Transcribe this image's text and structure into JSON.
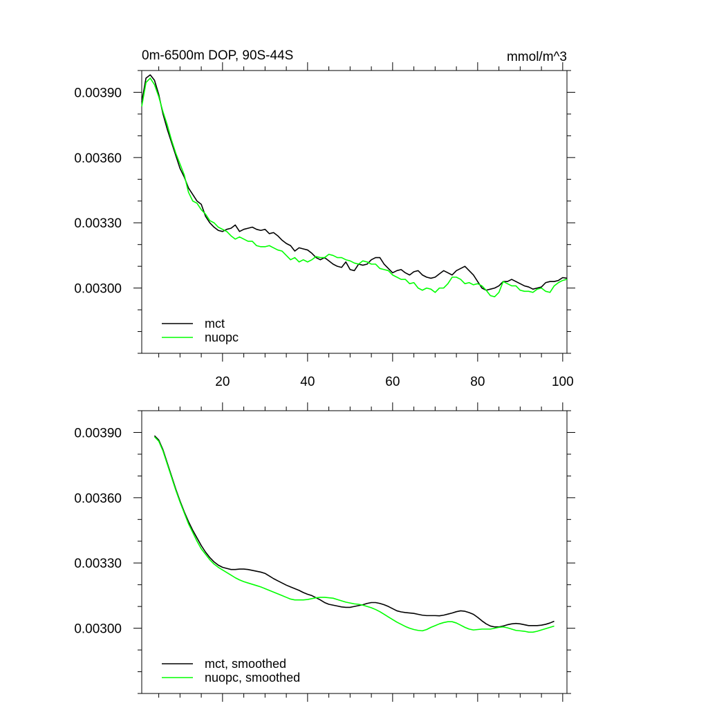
{
  "chart_data": [
    {
      "type": "line",
      "title": "0m-6500m DOP, 90S-44S",
      "units": "mmol/m^3",
      "xlim": [
        1,
        101
      ],
      "ylim": [
        0.0027,
        0.004
      ],
      "xticks": [
        20,
        40,
        60,
        80,
        100
      ],
      "xtick_labels": [
        "20",
        "40",
        "60",
        "80",
        "100"
      ],
      "yticks": [
        0.003,
        0.0033,
        0.0036,
        0.0039
      ],
      "ytick_labels": [
        "0.00300",
        "0.00330",
        "0.00360",
        "0.00390"
      ],
      "grid": false,
      "legend_position": "bottom-left",
      "series": [
        {
          "name": "mct",
          "color": "#000000",
          "x": [
            1,
            2,
            3,
            4,
            5,
            6,
            7,
            8,
            9,
            10,
            11,
            12,
            13,
            14,
            15,
            16,
            17,
            18,
            19,
            20,
            21,
            22,
            23,
            24,
            25,
            26,
            27,
            28,
            29,
            30,
            31,
            32,
            33,
            34,
            35,
            36,
            37,
            38,
            39,
            40,
            41,
            42,
            43,
            44,
            45,
            46,
            47,
            48,
            49,
            50,
            51,
            52,
            53,
            54,
            55,
            56,
            57,
            58,
            59,
            60,
            61,
            62,
            63,
            64,
            65,
            66,
            67,
            68,
            69,
            70,
            71,
            72,
            73,
            74,
            75,
            76,
            77,
            78,
            79,
            80,
            81,
            82,
            83,
            84,
            85,
            86,
            87,
            88,
            89,
            90,
            91,
            92,
            93,
            94,
            95,
            96,
            97,
            98,
            99,
            100,
            101
          ],
          "values": [
            0.003855,
            0.003965,
            0.00398,
            0.003955,
            0.00389,
            0.0038,
            0.00373,
            0.00367,
            0.00361,
            0.00355,
            0.00351,
            0.00346,
            0.00343,
            0.0034,
            0.003385,
            0.00333,
            0.0033,
            0.00328,
            0.003265,
            0.00326,
            0.00327,
            0.003275,
            0.00329,
            0.00326,
            0.00327,
            0.003275,
            0.00328,
            0.00327,
            0.003265,
            0.00327,
            0.00325,
            0.003255,
            0.00324,
            0.00322,
            0.003205,
            0.003195,
            0.00317,
            0.003185,
            0.00318,
            0.003175,
            0.00316,
            0.00314,
            0.00313,
            0.00314,
            0.003125,
            0.00311,
            0.0031,
            0.003095,
            0.00312,
            0.003085,
            0.00308,
            0.00311,
            0.003105,
            0.00311,
            0.00313,
            0.00314,
            0.00314,
            0.00311,
            0.00309,
            0.00307,
            0.00308,
            0.003085,
            0.00307,
            0.00306,
            0.003075,
            0.00308,
            0.00306,
            0.00305,
            0.003045,
            0.00305,
            0.003065,
            0.00308,
            0.00307,
            0.00306,
            0.00308,
            0.00309,
            0.0031,
            0.00308,
            0.00306,
            0.00303,
            0.003,
            0.00299,
            0.002995,
            0.003,
            0.00301,
            0.00303,
            0.00303,
            0.00304,
            0.00303,
            0.00302,
            0.00301,
            0.003005,
            0.002995,
            0.003,
            0.003005,
            0.003025,
            0.00303,
            0.00303,
            0.003035,
            0.003048,
            0.003045
          ]
        },
        {
          "name": "nuopc",
          "color": "#00ff00",
          "x": [
            1,
            2,
            3,
            4,
            5,
            6,
            7,
            8,
            9,
            10,
            11,
            12,
            13,
            14,
            15,
            16,
            17,
            18,
            19,
            20,
            21,
            22,
            23,
            24,
            25,
            26,
            27,
            28,
            29,
            30,
            31,
            32,
            33,
            34,
            35,
            36,
            37,
            38,
            39,
            40,
            41,
            42,
            43,
            44,
            45,
            46,
            47,
            48,
            49,
            50,
            51,
            52,
            53,
            54,
            55,
            56,
            57,
            58,
            59,
            60,
            61,
            62,
            63,
            64,
            65,
            66,
            67,
            68,
            69,
            70,
            71,
            72,
            73,
            74,
            75,
            76,
            77,
            78,
            79,
            80,
            81,
            82,
            83,
            84,
            85,
            86,
            87,
            88,
            89,
            90,
            91,
            92,
            93,
            94,
            95,
            96,
            97,
            98,
            99,
            100,
            101
          ],
          "values": [
            0.003835,
            0.003945,
            0.003965,
            0.003935,
            0.00388,
            0.00381,
            0.00375,
            0.00368,
            0.00362,
            0.00357,
            0.00352,
            0.00344,
            0.0034,
            0.00339,
            0.00336,
            0.00334,
            0.00331,
            0.0033,
            0.00328,
            0.00327,
            0.00326,
            0.00324,
            0.003225,
            0.003235,
            0.003225,
            0.003215,
            0.003215,
            0.003195,
            0.00319,
            0.00319,
            0.003195,
            0.003185,
            0.003175,
            0.00317,
            0.00315,
            0.00313,
            0.00314,
            0.00312,
            0.00313,
            0.00312,
            0.00313,
            0.003145,
            0.00314,
            0.00314,
            0.003155,
            0.00315,
            0.00314,
            0.00314,
            0.00313,
            0.003125,
            0.003115,
            0.00311,
            0.003125,
            0.00312,
            0.00311,
            0.00311,
            0.00309,
            0.003085,
            0.00308,
            0.00306,
            0.00305,
            0.00304,
            0.00304,
            0.00302,
            0.003025,
            0.003,
            0.00299,
            0.003,
            0.002995,
            0.00298,
            0.003,
            0.003,
            0.00302,
            0.00305,
            0.00305,
            0.00304,
            0.00302,
            0.003025,
            0.003015,
            0.00302,
            0.00301,
            0.00299,
            0.002965,
            0.00296,
            0.00298,
            0.00303,
            0.00302,
            0.00301,
            0.00301,
            0.00299,
            0.002985,
            0.002985,
            0.00298,
            0.002995,
            0.003,
            0.002985,
            0.00298,
            0.00301,
            0.003025,
            0.003035,
            0.00304
          ]
        }
      ]
    },
    {
      "type": "line",
      "title": "",
      "xlim": [
        1,
        101
      ],
      "ylim": [
        0.0027,
        0.004
      ],
      "xticks": [
        20,
        40,
        60,
        80,
        100
      ],
      "xtick_labels": [],
      "yticks": [
        0.003,
        0.0033,
        0.0036,
        0.0039
      ],
      "ytick_labels": [
        "0.00300",
        "0.00330",
        "0.00360",
        "0.00390"
      ],
      "grid": false,
      "legend_position": "bottom-left",
      "series": [
        {
          "name": "mct, smoothed",
          "color": "#000000",
          "x": [
            4,
            5,
            6,
            7,
            8,
            9,
            10,
            11,
            12,
            13,
            14,
            15,
            16,
            17,
            18,
            19,
            20,
            21,
            22,
            23,
            24,
            25,
            26,
            27,
            28,
            29,
            30,
            31,
            32,
            33,
            34,
            35,
            36,
            37,
            38,
            39,
            40,
            41,
            42,
            43,
            44,
            45,
            46,
            47,
            48,
            49,
            50,
            51,
            52,
            53,
            54,
            55,
            56,
            57,
            58,
            59,
            60,
            61,
            62,
            63,
            64,
            65,
            66,
            67,
            68,
            69,
            70,
            71,
            72,
            73,
            74,
            75,
            76,
            77,
            78,
            79,
            80,
            81,
            82,
            83,
            84,
            85,
            86,
            87,
            88,
            89,
            90,
            91,
            92,
            93,
            94,
            95,
            96,
            97,
            98
          ],
          "values": [
            0.003885,
            0.003865,
            0.00382,
            0.00376,
            0.0037,
            0.00364,
            0.003585,
            0.003535,
            0.00349,
            0.00345,
            0.003415,
            0.00338,
            0.00335,
            0.003325,
            0.003305,
            0.00329,
            0.00328,
            0.003275,
            0.00327,
            0.00327,
            0.003272,
            0.003272,
            0.00327,
            0.003266,
            0.003262,
            0.003258,
            0.003252,
            0.00324,
            0.003228,
            0.003218,
            0.003208,
            0.003198,
            0.00319,
            0.003182,
            0.003174,
            0.003164,
            0.003156,
            0.00315,
            0.00314,
            0.00313,
            0.003118,
            0.00311,
            0.003106,
            0.003102,
            0.003098,
            0.003096,
            0.003096,
            0.0031,
            0.003104,
            0.003108,
            0.003114,
            0.003118,
            0.003118,
            0.003114,
            0.003108,
            0.0031,
            0.00309,
            0.00308,
            0.003075,
            0.003072,
            0.00307,
            0.003068,
            0.003064,
            0.00306,
            0.003058,
            0.003058,
            0.003058,
            0.003057,
            0.00306,
            0.003065,
            0.00307,
            0.003076,
            0.00308,
            0.003078,
            0.003072,
            0.003064,
            0.00305,
            0.003034,
            0.00302,
            0.00301,
            0.003006,
            0.003006,
            0.00301,
            0.003016,
            0.00302,
            0.003022,
            0.00302,
            0.003016,
            0.003012,
            0.003012,
            0.003012,
            0.003014,
            0.003018,
            0.003024,
            0.003032
          ]
        },
        {
          "name": "nuopc, smoothed",
          "color": "#00ff00",
          "x": [
            4,
            5,
            6,
            7,
            8,
            9,
            10,
            11,
            12,
            13,
            14,
            15,
            16,
            17,
            18,
            19,
            20,
            21,
            22,
            23,
            24,
            25,
            26,
            27,
            28,
            29,
            30,
            31,
            32,
            33,
            34,
            35,
            36,
            37,
            38,
            39,
            40,
            41,
            42,
            43,
            44,
            45,
            46,
            47,
            48,
            49,
            50,
            51,
            52,
            53,
            54,
            55,
            56,
            57,
            58,
            59,
            60,
            61,
            62,
            63,
            64,
            65,
            66,
            67,
            68,
            69,
            70,
            71,
            72,
            73,
            74,
            75,
            76,
            77,
            78,
            79,
            80,
            81,
            82,
            83,
            84,
            85,
            86,
            87,
            88,
            89,
            90,
            91,
            92,
            93,
            94,
            95,
            96,
            97,
            98
          ],
          "values": [
            0.00388,
            0.00386,
            0.003815,
            0.003755,
            0.003695,
            0.003635,
            0.00358,
            0.00353,
            0.00348,
            0.00344,
            0.0034,
            0.003365,
            0.00334,
            0.003315,
            0.003295,
            0.00328,
            0.003268,
            0.003256,
            0.003244,
            0.003232,
            0.003222,
            0.003214,
            0.003208,
            0.003202,
            0.003196,
            0.00319,
            0.003182,
            0.003174,
            0.003166,
            0.003158,
            0.00315,
            0.003142,
            0.003134,
            0.00313,
            0.00313,
            0.00313,
            0.003132,
            0.003136,
            0.00314,
            0.003142,
            0.003142,
            0.00314,
            0.003138,
            0.003132,
            0.003126,
            0.00312,
            0.003116,
            0.003112,
            0.00311,
            0.003106,
            0.0031,
            0.003094,
            0.003086,
            0.003076,
            0.003064,
            0.003052,
            0.00304,
            0.003028,
            0.003018,
            0.003008,
            0.003,
            0.002994,
            0.00299,
            0.002988,
            0.002994,
            0.003004,
            0.003012,
            0.00302,
            0.003026,
            0.00303,
            0.00303,
            0.003024,
            0.003014,
            0.003004,
            0.002996,
            0.002992,
            0.002994,
            0.002996,
            0.002996,
            0.002996,
            0.003,
            0.003004,
            0.003006,
            0.003002,
            0.002996,
            0.00299,
            0.002988,
            0.002986,
            0.002982,
            0.002982,
            0.002986,
            0.002992,
            0.002998,
            0.003004,
            0.00301
          ]
        }
      ]
    }
  ]
}
